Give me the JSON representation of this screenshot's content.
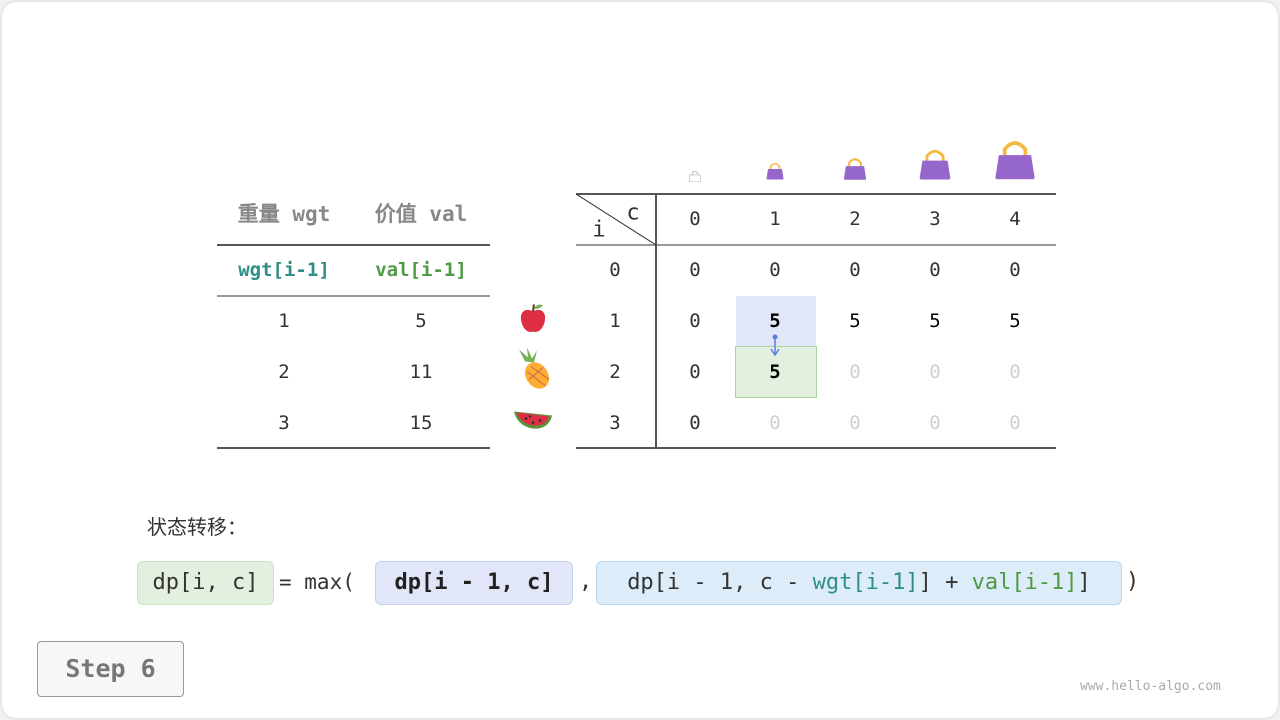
{
  "items_table": {
    "headers": [
      "重量 wgt",
      "价值 val"
    ],
    "subheaders": [
      "wgt[i-1]",
      "val[i-1]"
    ],
    "rows": [
      [
        "1",
        "5"
      ],
      [
        "2",
        "11"
      ],
      [
        "3",
        "15"
      ]
    ],
    "item_icons": [
      "apple-icon",
      "pineapple-icon",
      "watermelon-icon"
    ]
  },
  "dp_table": {
    "corner_row_label": "i",
    "corner_col_label": "c",
    "col_headers": [
      "0",
      "1",
      "2",
      "3",
      "4"
    ],
    "row_headers": [
      "0",
      "1",
      "2",
      "3"
    ],
    "cells": [
      [
        "0",
        "0",
        "0",
        "0",
        "0"
      ],
      [
        "0",
        "5",
        "5",
        "5",
        "5"
      ],
      [
        "0",
        "5",
        "0",
        "0",
        "0"
      ],
      [
        "0",
        "0",
        "0",
        "0",
        "0"
      ]
    ],
    "filled": [
      [
        true,
        true,
        true,
        true,
        true
      ],
      [
        true,
        true,
        true,
        true,
        true
      ],
      [
        true,
        true,
        false,
        false,
        false
      ],
      [
        true,
        false,
        false,
        false,
        false
      ]
    ],
    "highlight_source": [
      1,
      1
    ],
    "highlight_target": [
      2,
      1
    ],
    "capacity_icons": [
      "bag-empty-icon",
      "bag-icon",
      "bag-icon",
      "bag-icon",
      "bag-icon"
    ]
  },
  "transition": {
    "label": "状态转移：",
    "lhs": "dp[i, c]",
    "eq": "= max(",
    "arg1": "dp[i - 1, c]",
    "comma": ",",
    "arg2_prefix": "dp[i - 1, c - ",
    "arg2_wgt": "wgt[i-1]",
    "arg2_mid": "] + ",
    "arg2_val": "val[i-1]",
    "close": ")"
  },
  "colors": {
    "teal": "#2f8f86",
    "green": "#4e9a45",
    "bag": "#9566cc",
    "handle": "#f5b942",
    "blue_bg": "#e1e6f9",
    "green_bg": "#e3f0e0",
    "cyan_bg": "#dcecf8"
  },
  "step_label": "Step 6",
  "watermark": "www.hello-algo.com"
}
